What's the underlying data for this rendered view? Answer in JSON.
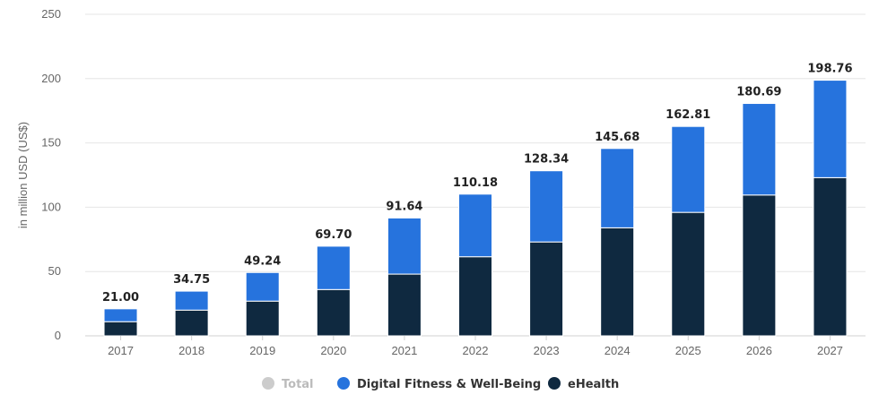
{
  "chart_data": {
    "type": "bar",
    "stacked": true,
    "title": "",
    "xlabel": "",
    "ylabel": "in million USD (US$)",
    "ylim": [
      0,
      250
    ],
    "yticks": [
      0,
      50,
      100,
      150,
      200,
      250
    ],
    "grid": true,
    "legend_position": "bottom-center",
    "categories": [
      "2017",
      "2018",
      "2019",
      "2020",
      "2021",
      "2022",
      "2023",
      "2024",
      "2025",
      "2026",
      "2027"
    ],
    "series": [
      {
        "name": "eHealth",
        "color": "#0f2940",
        "values": [
          11.0,
          20.0,
          27.0,
          36.0,
          48.0,
          61.5,
          73.0,
          84.0,
          96.0,
          109.5,
          123.0
        ]
      },
      {
        "name": "Digital Fitness & Well-Being",
        "color": "#2673dd",
        "values": [
          10.0,
          14.75,
          22.24,
          33.7,
          43.64,
          48.68,
          55.34,
          61.68,
          66.81,
          71.19,
          75.76
        ]
      }
    ],
    "totals": [
      21.0,
      34.75,
      49.24,
      69.7,
      91.64,
      110.18,
      128.34,
      145.68,
      162.81,
      180.69,
      198.76
    ],
    "total_labels": [
      "21.00",
      "34.75",
      "49.24",
      "69.70",
      "91.64",
      "110.18",
      "128.34",
      "145.68",
      "162.81",
      "180.69",
      "198.76"
    ],
    "legend": [
      {
        "label": "Total",
        "color": "#cccccc",
        "text_color": "#bbbbbb",
        "active": false
      },
      {
        "label": "Digital Fitness & Well-Being",
        "color": "#2673dd",
        "text_color": "#333333",
        "active": true
      },
      {
        "label": "eHealth",
        "color": "#0f2940",
        "text_color": "#333333",
        "active": true
      }
    ]
  }
}
